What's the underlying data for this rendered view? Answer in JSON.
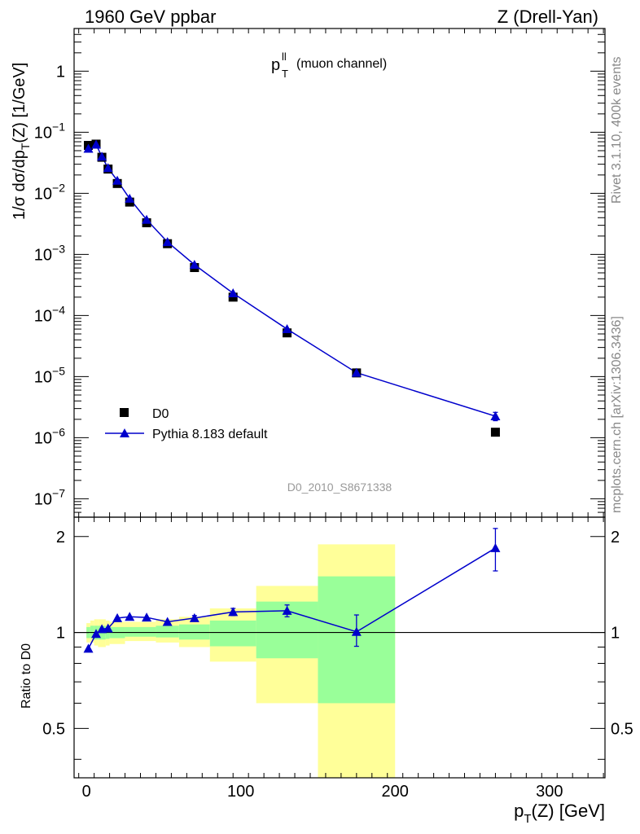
{
  "header": {
    "left": "1960 GeV ppbar",
    "right": "Z (Drell-Yan)"
  },
  "side": {
    "rivet": "Rivet 3.1.10,  400k events",
    "mcplots": "mcplots.cern.ch [arXiv:1306.3436]"
  },
  "chart_data": [
    {
      "type": "scatter",
      "title": "p_T^ll (muon channel)",
      "title_main": "p",
      "title_sup": "ll",
      "title_sub": "T",
      "title_rest": "(muon channel)",
      "analysis_tag": "D0_2010_S8671338",
      "ylabel": "1/σ dσ/dp_T(Z) [1/GeV]",
      "ylabel_parts": {
        "pre": "1/σ  dσ/dp",
        "sub": "T",
        "post": "(Z) [1/GeV]"
      },
      "yscale": "log",
      "ylim": [
        5e-08,
        5
      ],
      "xlim": [
        -8,
        336
      ],
      "yticks_labels": [
        {
          "mant": "10",
          "exp": "−7",
          "value": 1e-07
        },
        {
          "mant": "10",
          "exp": "−6",
          "value": 1e-06
        },
        {
          "mant": "10",
          "exp": "−5",
          "value": 1e-05
        },
        {
          "mant": "10",
          "exp": "−4",
          "value": 0.0001
        },
        {
          "mant": "10",
          "exp": "−3",
          "value": 0.001
        },
        {
          "mant": "10",
          "exp": "−2",
          "value": 0.01
        },
        {
          "mant": "10",
          "exp": "−1",
          "value": 0.1
        },
        {
          "mant": "1",
          "exp": "",
          "value": 1
        }
      ],
      "legend_position": "lower-left",
      "series": [
        {
          "name": "D0",
          "marker": "square",
          "color": "#000000",
          "x": [
            1.25,
            6.25,
            10,
            14,
            20,
            28,
            39,
            52.5,
            70,
            95,
            130,
            175,
            265
          ],
          "y": [
            0.061,
            0.064,
            0.039,
            0.025,
            0.0145,
            0.0072,
            0.0033,
            0.0015,
            0.00061,
            0.0002,
            5.2e-05,
            1.15e-05,
            1.23e-06
          ]
        },
        {
          "name": "Pythia 8.183 default",
          "marker": "triangle",
          "color": "#0000cc",
          "x": [
            1.25,
            6.25,
            10,
            14,
            20,
            28,
            39,
            52.5,
            70,
            95,
            130,
            175,
            265
          ],
          "y": [
            0.054,
            0.063,
            0.04,
            0.026,
            0.0162,
            0.0082,
            0.0037,
            0.0016,
            0.00068,
            0.000232,
            6e-05,
            1.16e-05,
            2.25e-06
          ],
          "yerr": [
            0,
            0,
            0,
            0,
            0,
            0,
            0,
            0,
            0,
            0,
            0,
            0,
            3.5e-07
          ]
        }
      ]
    },
    {
      "type": "scatter",
      "ylabel": "Ratio to D0",
      "xlabel": "p_T(Z) [GeV]",
      "xlabel_parts": {
        "pre": "p",
        "sub": "T",
        "post": "(Z) [GeV]"
      },
      "yscale": "log",
      "ylim": [
        0.35,
        2.3
      ],
      "xlim": [
        -8,
        336
      ],
      "xticks": [
        0,
        100,
        200,
        300
      ],
      "yticks": [
        0.5,
        1,
        2
      ],
      "bands": {
        "edges": [
          0,
          2.5,
          5,
          7.5,
          12.5,
          15,
          25,
          30,
          45,
          60,
          80,
          110,
          150,
          200,
          330
        ],
        "yellow_lo": [
          0.93,
          0.93,
          0.91,
          0.9,
          0.91,
          0.92,
          0.94,
          0.94,
          0.93,
          0.9,
          0.81,
          0.6,
          0.35
        ],
        "yellow_hi": [
          1.07,
          1.09,
          1.1,
          1.1,
          1.09,
          1.08,
          1.08,
          1.08,
          1.1,
          1.12,
          1.19,
          1.4,
          1.89
        ],
        "green_lo": [
          0.96,
          0.96,
          0.95,
          0.95,
          0.955,
          0.96,
          0.97,
          0.97,
          0.965,
          0.95,
          0.905,
          0.83,
          0.6
        ],
        "green_hi": [
          1.04,
          1.05,
          1.05,
          1.05,
          1.045,
          1.04,
          1.04,
          1.04,
          1.05,
          1.06,
          1.09,
          1.25,
          1.5
        ]
      },
      "series": [
        {
          "name": "Pythia 8.183 default",
          "color": "#0000cc",
          "x": [
            1.25,
            6.25,
            10,
            14,
            20,
            28,
            39,
            52.5,
            70,
            95,
            130,
            175,
            265
          ],
          "y": [
            0.89,
            0.99,
            1.025,
            1.03,
            1.11,
            1.12,
            1.115,
            1.08,
            1.11,
            1.16,
            1.17,
            1.005,
            1.84
          ],
          "yerr_lo": [
            0,
            0,
            0,
            0,
            0,
            0,
            0,
            0,
            0.02,
            0.03,
            0.05,
            0.1,
            0.28
          ],
          "yerr_hi": [
            0,
            0,
            0,
            0,
            0,
            0,
            0,
            0,
            0.02,
            0.03,
            0.05,
            0.13,
            0.28
          ]
        }
      ]
    }
  ]
}
